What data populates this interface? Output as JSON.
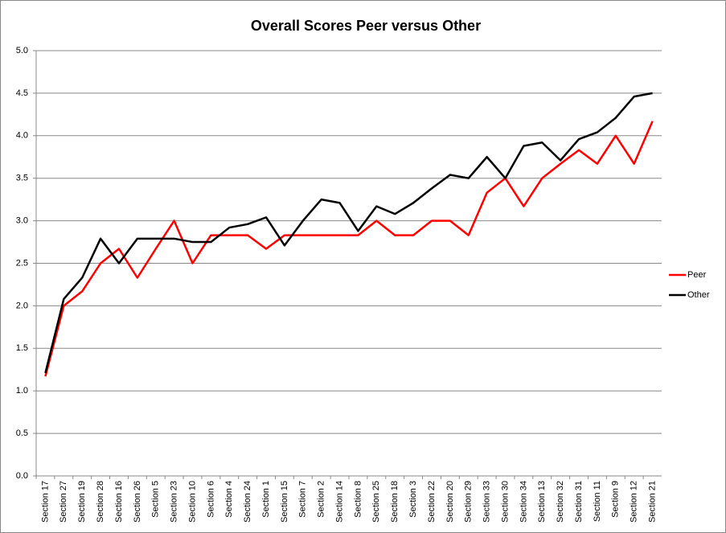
{
  "chart_data": {
    "type": "line",
    "title": "Overall Scores Peer versus Other",
    "categories": [
      "Section 17",
      "Section 27",
      "Section 19",
      "Section 28",
      "Section 16",
      "Section 26",
      "Section 5",
      "Section 23",
      "Section 10",
      "Section 6",
      "Section 4",
      "Section 24",
      "Section 1",
      "Section 15",
      "Section 7",
      "Section 2",
      "Section 14",
      "Section 8",
      "Section 25",
      "Section 18",
      "Section 3",
      "Section 22",
      "Section 20",
      "Section 29",
      "Section 33",
      "Section 30",
      "Section 34",
      "Section 13",
      "Section 32",
      "Section 31",
      "Section 11",
      "Section 9",
      "Section 12",
      "Section 21"
    ],
    "series": [
      {
        "name": "Peer",
        "color": "#ff0000",
        "values": [
          1.17,
          2.0,
          2.17,
          2.5,
          2.67,
          2.33,
          2.67,
          3.0,
          2.5,
          2.83,
          2.83,
          2.83,
          2.67,
          2.83,
          2.83,
          2.83,
          2.83,
          2.83,
          3.0,
          2.83,
          2.83,
          3.0,
          3.0,
          2.83,
          3.33,
          3.5,
          3.17,
          3.5,
          3.67,
          3.83,
          3.67,
          4.0,
          3.67,
          4.17
        ]
      },
      {
        "name": "Other",
        "color": "#000000",
        "values": [
          1.21,
          2.08,
          2.33,
          2.79,
          2.5,
          2.79,
          2.79,
          2.79,
          2.75,
          2.75,
          2.92,
          2.96,
          3.04,
          2.71,
          3.0,
          3.25,
          3.21,
          2.88,
          3.17,
          3.08,
          3.21,
          3.38,
          3.54,
          3.5,
          3.75,
          3.5,
          3.88,
          3.92,
          3.71,
          3.96,
          4.04,
          4.21,
          4.46,
          4.5
        ]
      }
    ],
    "ylim": [
      0,
      5
    ],
    "yticks": [
      {
        "value": 0,
        "label": "0.0"
      },
      0.5,
      {
        "value": 1,
        "label": "1.0"
      },
      1.5,
      {
        "value": 2,
        "label": "2.0"
      },
      2.5,
      {
        "value": 3,
        "label": "3.0"
      },
      3.5,
      {
        "value": 4,
        "label": "4.0"
      },
      4.5,
      {
        "value": 5,
        "label": "5.0"
      }
    ],
    "grid": true,
    "legend": "right"
  }
}
